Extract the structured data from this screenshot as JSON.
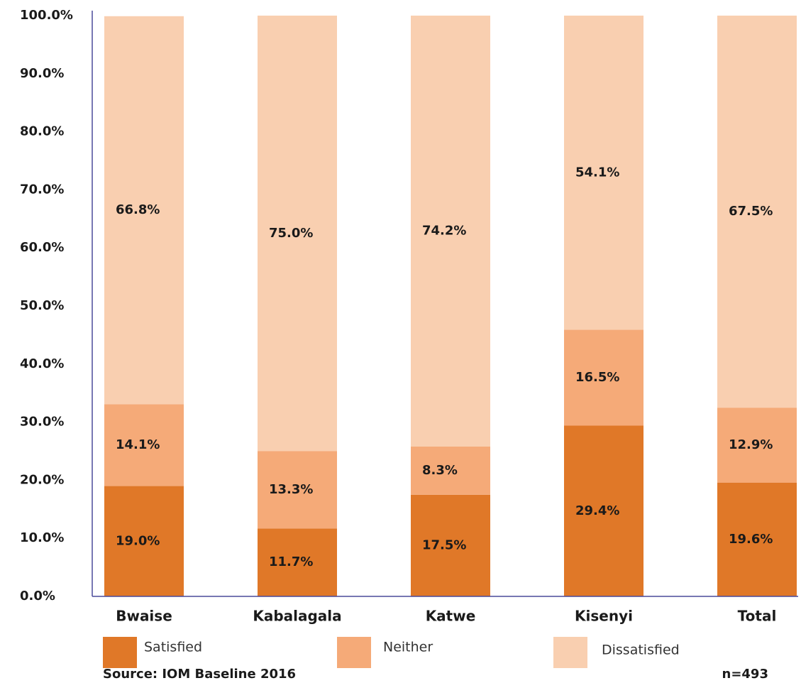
{
  "chart_data": {
    "type": "stacked_bar",
    "categories": [
      "Bwaise",
      "Kabalagala",
      "Katwe",
      "Kisenyi",
      "Total"
    ],
    "series": [
      {
        "name": "Satisfied",
        "color": "#e07828",
        "values": [
          19.0,
          11.7,
          17.5,
          29.4,
          19.6
        ],
        "value_labels": [
          "19.0%",
          "11.7%",
          "17.5%",
          "29.4%",
          "19.6%"
        ]
      },
      {
        "name": "Neither",
        "color": "#f5aa78",
        "values": [
          14.1,
          13.3,
          8.3,
          16.5,
          12.9
        ],
        "value_labels": [
          "14.1%",
          "13.3%",
          "8.3%",
          "16.5%",
          "12.9%"
        ]
      },
      {
        "name": "Dissatisfied",
        "color": "#f9cfb0",
        "values": [
          66.8,
          75.0,
          74.2,
          54.1,
          67.5
        ],
        "value_labels": [
          "66.8%",
          "75.0%",
          "74.2%",
          "54.1%",
          "67.5%"
        ]
      }
    ],
    "ylim": [
      0,
      100
    ],
    "yticks": [
      {
        "value": 0,
        "label": "0.0%"
      },
      {
        "value": 10,
        "label": "10.0%"
      },
      {
        "value": 20,
        "label": "20.0%"
      },
      {
        "value": 30,
        "label": "30.0%"
      },
      {
        "value": 40,
        "label": "40.0%"
      },
      {
        "value": 50,
        "label": "50.0%"
      },
      {
        "value": 60,
        "label": "60.0%"
      },
      {
        "value": 70,
        "label": "70.0%"
      },
      {
        "value": 80,
        "label": "80.0%"
      },
      {
        "value": 90,
        "label": "90.0%"
      },
      {
        "value": 100,
        "label": "100.0%"
      }
    ],
    "grid": false,
    "source": "Source: IOM Baseline 2016",
    "note": "n=493"
  }
}
